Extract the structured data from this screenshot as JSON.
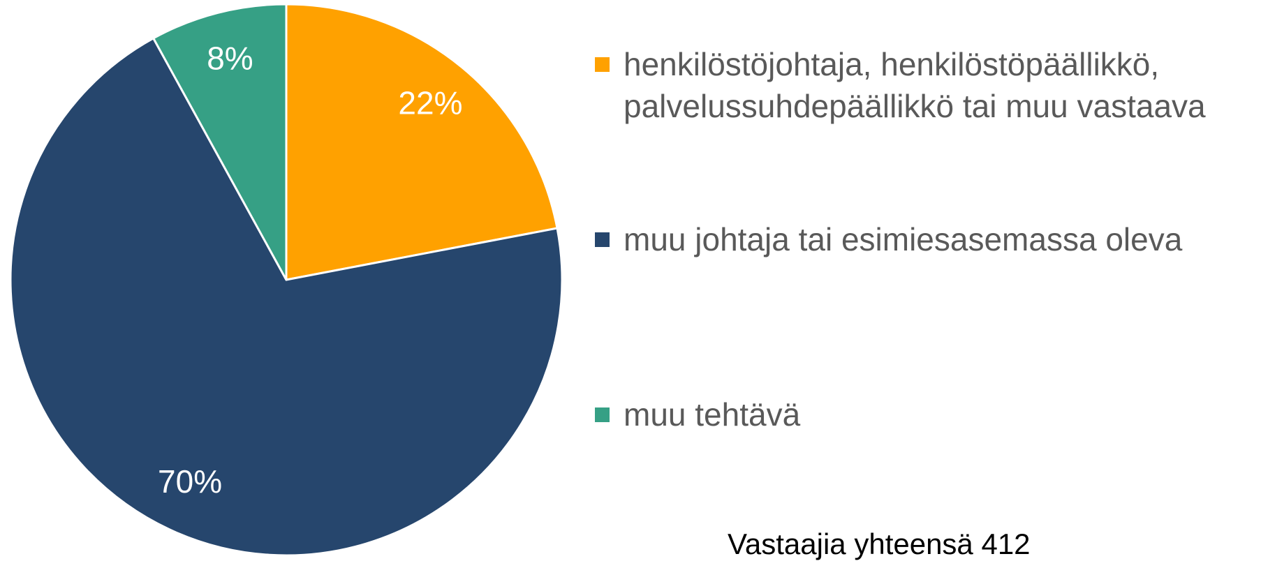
{
  "chart_data": {
    "type": "pie",
    "categories": [
      "henkilöstöjohtaja, henkilöstöpäällikkö, palvelussuhdepäällikkö tai muu vastaava",
      "muu johtaja tai esimiesasemassa oleva",
      "muu tehtävä"
    ],
    "values": [
      22,
      70,
      8
    ],
    "value_labels": [
      "22%",
      "70%",
      "8%"
    ],
    "colors": [
      "#FFA100",
      "#26466D",
      "#36A085"
    ],
    "annotation": "Vastaajia yhteensä 412"
  }
}
